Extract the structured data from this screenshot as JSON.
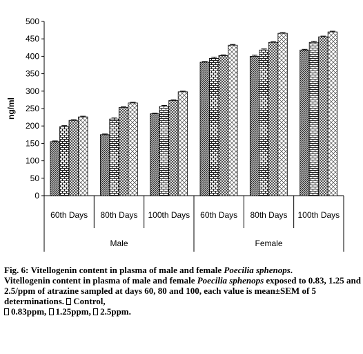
{
  "chart_data": {
    "type": "bar",
    "ylabel": "ng/ml",
    "ylim": [
      0,
      500
    ],
    "y_ticks": [
      0,
      50,
      100,
      150,
      200,
      250,
      300,
      350,
      400,
      450,
      500
    ],
    "grid": false,
    "legend": "none",
    "groups": [
      {
        "label": "Male",
        "categories": [
          "60th Days",
          "80th Days",
          "100th Days"
        ]
      },
      {
        "label": "Female",
        "categories": [
          "60th Days",
          "80th Days",
          "100th Days"
        ]
      }
    ],
    "categories": [
      "60th Days",
      "80th Days",
      "100th Days",
      "60th Days",
      "80th Days",
      "100th Days"
    ],
    "series": [
      {
        "values": [
          155,
          175,
          235,
          383,
          400,
          418
        ],
        "errors": [
          2,
          2,
          2,
          2,
          3,
          2
        ],
        "pattern": "diag-dark",
        "color": "#555555"
      },
      {
        "values": [
          198,
          220,
          256,
          394,
          418,
          440
        ],
        "errors": [
          3,
          3,
          3,
          3,
          3,
          3
        ],
        "pattern": "brick",
        "color": "#333333"
      },
      {
        "values": [
          216,
          253,
          273,
          402,
          440,
          456
        ],
        "errors": [
          2,
          2,
          2,
          2,
          2,
          2
        ],
        "pattern": "cross",
        "color": "#444444"
      },
      {
        "values": [
          226,
          266,
          298,
          432,
          466,
          470
        ],
        "errors": [
          2,
          2,
          2,
          2,
          2,
          2
        ],
        "pattern": "diamond",
        "color": "#444444"
      }
    ]
  },
  "caption": {
    "fig_label": "Fig. 6:",
    "title_pre": "Vitellogenin content in plasma of male and female ",
    "title_species": "Poecilia sphenops",
    "title_post": ".",
    "body_pre": "Vitellogenin content in plasma of male and female ",
    "body_species": "Poecilia sphenops",
    "body_post": " exposed to 0.83, 1.25 and 2.5/ppm of atrazine sampled at days 60, 80 and 100, each value is mean±SEM of 5 determinations.",
    "legend_items": [
      "Control,",
      "0.83ppm,",
      "1.25ppm,",
      "2.5ppm."
    ]
  }
}
